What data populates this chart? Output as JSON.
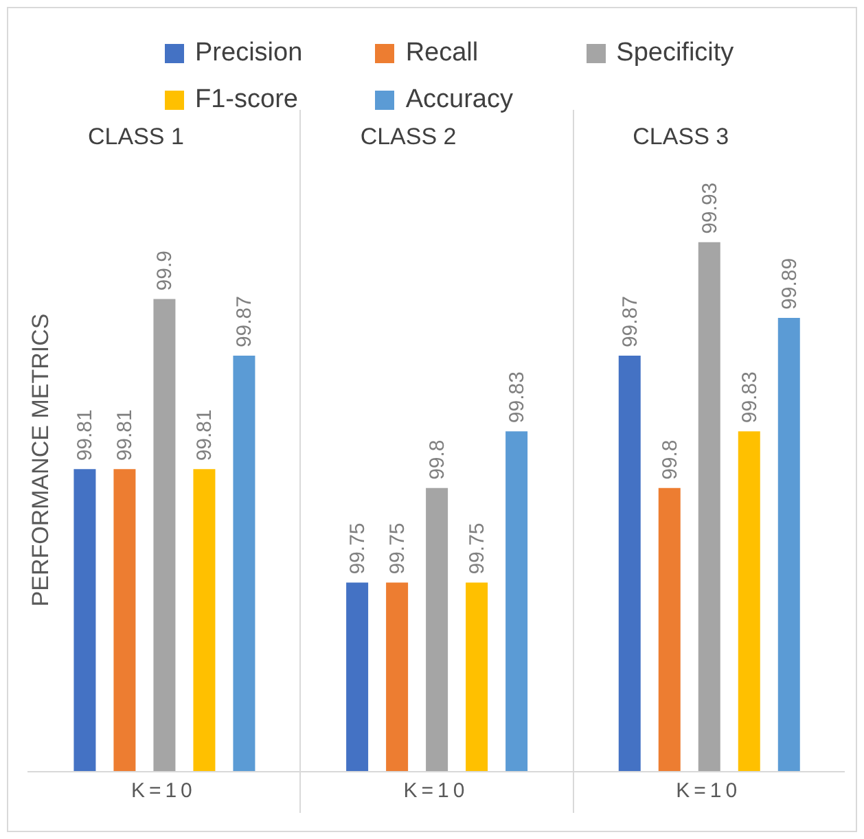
{
  "chart_data": {
    "type": "bar",
    "ylabel": "PERFORMANCE METRICS",
    "categories": [
      "K=10",
      "K=10",
      "K=10"
    ],
    "annotations": [
      "CLASS 1",
      "CLASS 2",
      "CLASS 3"
    ],
    "ylim": [
      99.65,
      100
    ],
    "data_labels": true,
    "legend": "top",
    "grid": false,
    "series": [
      {
        "name": "Precision",
        "color": "#4472c4",
        "values": [
          99.81,
          99.75,
          99.87
        ]
      },
      {
        "name": "Recall",
        "color": "#ed7d31",
        "values": [
          99.81,
          99.75,
          99.8
        ]
      },
      {
        "name": "Specificity",
        "color": "#a5a5a5",
        "values": [
          99.9,
          99.8,
          99.93
        ]
      },
      {
        "name": "F1-score",
        "color": "#ffc000",
        "values": [
          99.81,
          99.75,
          99.83
        ]
      },
      {
        "name": "Accuracy",
        "color": "#5b9bd5",
        "values": [
          99.87,
          99.83,
          99.89
        ]
      }
    ]
  }
}
